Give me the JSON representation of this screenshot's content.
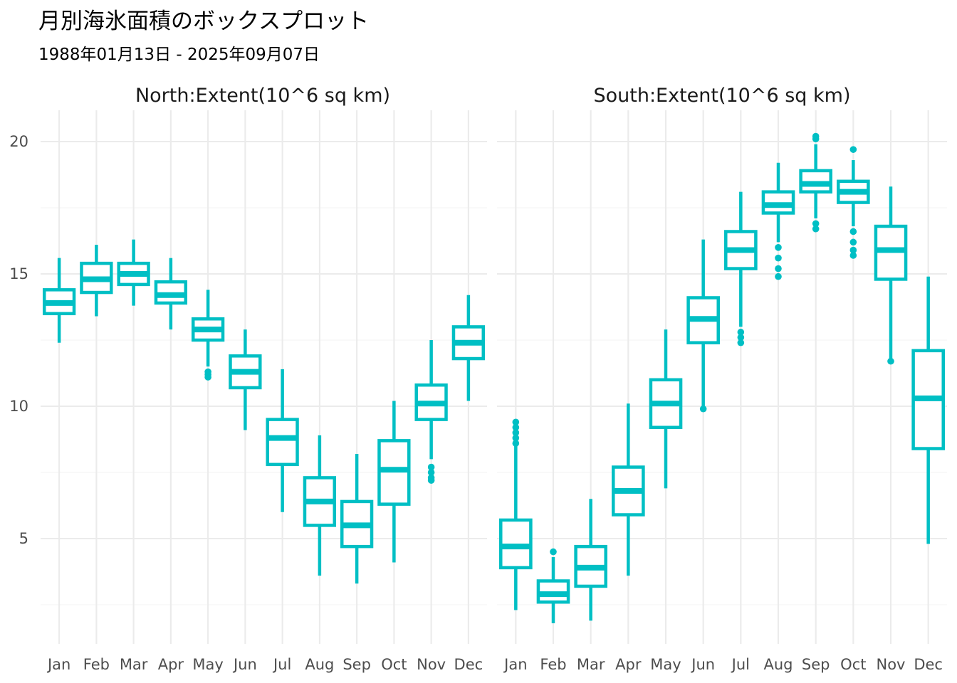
{
  "title": "月別海氷面積のボックスプロット",
  "subtitle": "1988年01月13日 - 2025年09月07日",
  "colors": {
    "box": "#00BFC4",
    "grid_major": "#EBEBEB",
    "grid_minor": "#F3F3F3",
    "text": "#4D4D4D"
  },
  "chart_data": {
    "type": "boxplot",
    "y_ticks": [
      5,
      10,
      15,
      20
    ],
    "ylim": [
      1.2,
      21.1
    ],
    "grid": true,
    "months": [
      "Jan",
      "Feb",
      "Mar",
      "Apr",
      "May",
      "Jun",
      "Jul",
      "Aug",
      "Sep",
      "Oct",
      "Nov",
      "Dec"
    ],
    "panels": [
      {
        "strip": "North:Extent(10^6 sq km)",
        "boxes": [
          {
            "month": "Jan",
            "min": 12.4,
            "q1": 13.5,
            "median": 13.9,
            "q3": 14.4,
            "max": 15.6,
            "outliers": []
          },
          {
            "month": "Feb",
            "min": 13.4,
            "q1": 14.3,
            "median": 14.8,
            "q3": 15.4,
            "max": 16.1,
            "outliers": []
          },
          {
            "month": "Mar",
            "min": 13.8,
            "q1": 14.6,
            "median": 15.0,
            "q3": 15.4,
            "max": 16.3,
            "outliers": []
          },
          {
            "month": "Apr",
            "min": 12.9,
            "q1": 13.9,
            "median": 14.2,
            "q3": 14.7,
            "max": 15.6,
            "outliers": []
          },
          {
            "month": "May",
            "min": 11.5,
            "q1": 12.5,
            "median": 12.9,
            "q3": 13.3,
            "max": 14.4,
            "outliers": [
              11.3,
              11.2,
              11.1
            ]
          },
          {
            "month": "Jun",
            "min": 9.1,
            "q1": 10.7,
            "median": 11.3,
            "q3": 11.9,
            "max": 12.9,
            "outliers": []
          },
          {
            "month": "Jul",
            "min": 6.0,
            "q1": 7.8,
            "median": 8.8,
            "q3": 9.5,
            "max": 11.4,
            "outliers": []
          },
          {
            "month": "Aug",
            "min": 3.6,
            "q1": 5.5,
            "median": 6.4,
            "q3": 7.3,
            "max": 8.9,
            "outliers": []
          },
          {
            "month": "Sep",
            "min": 3.3,
            "q1": 4.7,
            "median": 5.5,
            "q3": 6.4,
            "max": 8.2,
            "outliers": []
          },
          {
            "month": "Oct",
            "min": 4.1,
            "q1": 6.3,
            "median": 7.6,
            "q3": 8.7,
            "max": 10.2,
            "outliers": []
          },
          {
            "month": "Nov",
            "min": 8.0,
            "q1": 9.5,
            "median": 10.1,
            "q3": 10.8,
            "max": 12.5,
            "outliers": [
              7.7,
              7.5,
              7.3,
              7.2
            ]
          },
          {
            "month": "Dec",
            "min": 10.2,
            "q1": 11.8,
            "median": 12.4,
            "q3": 13.0,
            "max": 14.2,
            "outliers": []
          }
        ]
      },
      {
        "strip": "South:Extent(10^6 sq km)",
        "boxes": [
          {
            "month": "Jan",
            "min": 2.3,
            "q1": 3.9,
            "median": 4.7,
            "q3": 5.7,
            "max": 8.5,
            "outliers": [
              8.6,
              8.8,
              9.0,
              9.2,
              9.4
            ]
          },
          {
            "month": "Feb",
            "min": 1.8,
            "q1": 2.6,
            "median": 2.9,
            "q3": 3.4,
            "max": 4.3,
            "outliers": [
              4.5
            ]
          },
          {
            "month": "Mar",
            "min": 1.9,
            "q1": 3.2,
            "median": 3.9,
            "q3": 4.7,
            "max": 6.5,
            "outliers": []
          },
          {
            "month": "Apr",
            "min": 3.6,
            "q1": 5.9,
            "median": 6.8,
            "q3": 7.7,
            "max": 10.1,
            "outliers": []
          },
          {
            "month": "May",
            "min": 6.9,
            "q1": 9.2,
            "median": 10.1,
            "q3": 11.0,
            "max": 12.9,
            "outliers": []
          },
          {
            "month": "Jun",
            "min": 10.0,
            "q1": 12.4,
            "median": 13.3,
            "q3": 14.1,
            "max": 16.3,
            "outliers": [
              9.9
            ]
          },
          {
            "month": "Jul",
            "min": 13.0,
            "q1": 15.2,
            "median": 15.9,
            "q3": 16.6,
            "max": 18.1,
            "outliers": [
              12.8,
              12.6,
              12.4
            ]
          },
          {
            "month": "Aug",
            "min": 16.2,
            "q1": 17.3,
            "median": 17.6,
            "q3": 18.1,
            "max": 19.2,
            "outliers": [
              16.0,
              15.6,
              15.2,
              14.9
            ]
          },
          {
            "month": "Sep",
            "min": 17.1,
            "q1": 18.1,
            "median": 18.4,
            "q3": 18.9,
            "max": 19.9,
            "outliers": [
              16.9,
              16.7,
              20.1,
              20.2
            ]
          },
          {
            "month": "Oct",
            "min": 16.8,
            "q1": 17.7,
            "median": 18.1,
            "q3": 18.5,
            "max": 19.3,
            "outliers": [
              16.6,
              16.2,
              15.9,
              15.7,
              19.7
            ]
          },
          {
            "month": "Nov",
            "min": 11.8,
            "q1": 14.8,
            "median": 15.9,
            "q3": 16.8,
            "max": 18.3,
            "outliers": [
              11.7
            ]
          },
          {
            "month": "Dec",
            "min": 4.8,
            "q1": 8.4,
            "median": 10.3,
            "q3": 12.1,
            "max": 14.9,
            "outliers": []
          }
        ]
      }
    ]
  }
}
